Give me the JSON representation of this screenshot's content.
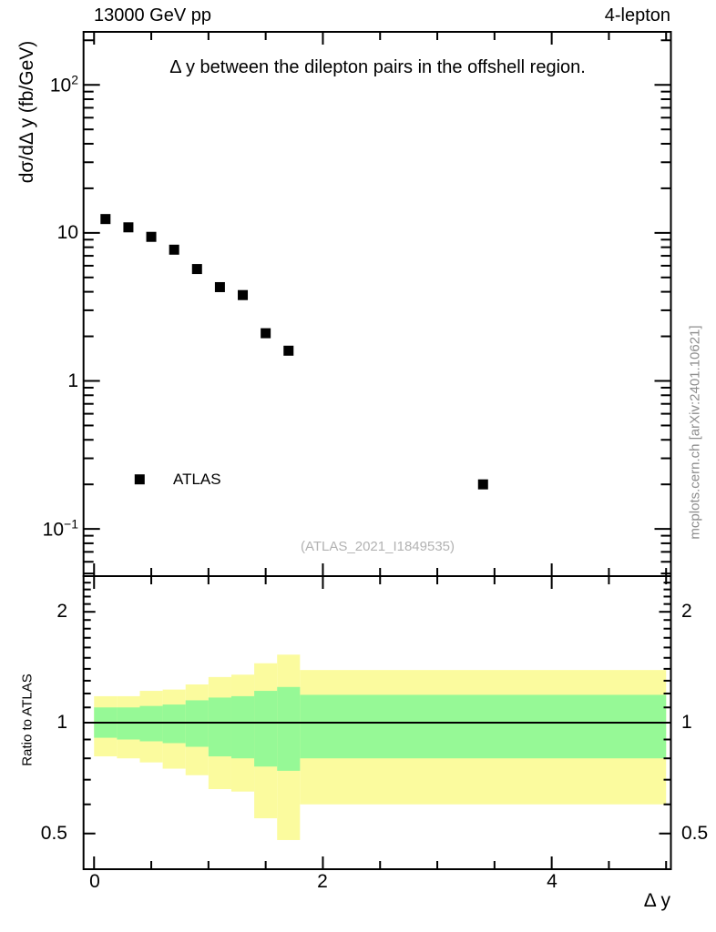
{
  "header": {
    "left_label": "13000 GeV pp",
    "right_label": "4-lepton"
  },
  "side_note": "mcplots.cern.ch [arXiv:2401.10621]",
  "watermark": "(ATLAS_2021_I1849535)",
  "chart_data": {
    "type": "scatter",
    "title": "Δ y between the dilepton pairs in the offshell region.",
    "xlabel": "Δ y",
    "x_axis": {
      "min": -0.092,
      "max": 5.042,
      "minor_tick_step": 0.5,
      "major_ticks": [
        0,
        2,
        4
      ],
      "major_tick_labels": [
        "0",
        "2",
        "4"
      ]
    },
    "top_panel": {
      "ylabel": "dσ/dΔ y (fb/GeV)",
      "yscale": "log",
      "ymin": 0.048,
      "ymax": 228,
      "ytick_values": [
        100,
        10,
        1,
        0.1
      ],
      "ytick_labels": [
        {
          "base": "10",
          "exp": "2"
        },
        {
          "text": "10"
        },
        {
          "text": "1"
        },
        {
          "base": "10",
          "exp": "−1"
        }
      ],
      "legend": [
        {
          "label": "ATLAS",
          "marker": "black-square"
        }
      ],
      "series": [
        {
          "name": "ATLAS",
          "marker": "square",
          "color": "#000000",
          "x": [
            0.1,
            0.3,
            0.5,
            0.7,
            0.9,
            1.1,
            1.3,
            1.5,
            1.7,
            3.4
          ],
          "y": [
            12.4,
            10.9,
            9.4,
            7.7,
            5.7,
            4.3,
            3.8,
            2.1,
            1.6,
            0.2
          ]
        }
      ]
    },
    "ratio_panel": {
      "ylabel": "Ratio to ATLAS",
      "yscale": "log",
      "ymin": 0.4,
      "ymax": 2.5,
      "baseline": 1,
      "ytick_values": [
        2,
        1,
        0.5
      ],
      "ytick_labels": [
        "2",
        "1",
        "0.5"
      ],
      "band_colors": {
        "outer": "#fbfb9e",
        "inner": "#96f996"
      },
      "bin_edges": [
        0,
        0.2,
        0.4,
        0.6,
        0.8,
        1.0,
        1.2,
        1.4,
        1.6,
        1.8,
        5.0
      ],
      "outer_band_hi": [
        1.18,
        1.18,
        1.22,
        1.23,
        1.27,
        1.33,
        1.35,
        1.45,
        1.53,
        1.39
      ],
      "outer_band_lo": [
        0.81,
        0.8,
        0.78,
        0.75,
        0.72,
        0.66,
        0.65,
        0.55,
        0.48,
        0.6
      ],
      "inner_band_hi": [
        1.1,
        1.1,
        1.11,
        1.12,
        1.15,
        1.17,
        1.18,
        1.22,
        1.25,
        1.19
      ],
      "inner_band_lo": [
        0.91,
        0.9,
        0.89,
        0.88,
        0.86,
        0.81,
        0.8,
        0.76,
        0.74,
        0.8
      ]
    }
  }
}
